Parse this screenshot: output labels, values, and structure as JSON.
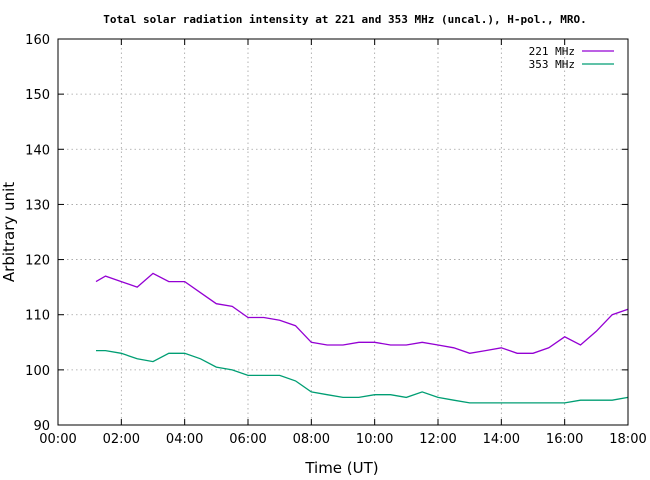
{
  "chart_data": {
    "type": "line",
    "title": "Total solar radiation intensity at 221 and 353 MHz (uncal.), H-pol., MRO.",
    "xlabel": "Time (UT)",
    "ylabel": "Arbitrary unit",
    "xlim": [
      0,
      18
    ],
    "ylim": [
      90,
      160
    ],
    "x_ticks": [
      {
        "value": 0,
        "label": "00:00"
      },
      {
        "value": 2,
        "label": "02:00"
      },
      {
        "value": 4,
        "label": "04:00"
      },
      {
        "value": 6,
        "label": "06:00"
      },
      {
        "value": 8,
        "label": "08:00"
      },
      {
        "value": 10,
        "label": "10:00"
      },
      {
        "value": 12,
        "label": "12:00"
      },
      {
        "value": 14,
        "label": "14:00"
      },
      {
        "value": 16,
        "label": "16:00"
      },
      {
        "value": 18,
        "label": "18:00"
      }
    ],
    "y_ticks": [
      90,
      100,
      110,
      120,
      130,
      140,
      150,
      160
    ],
    "grid": true,
    "legend_position": "top-right",
    "series": [
      {
        "name": "221 MHz",
        "color": "#9400d3",
        "x": [
          1.2,
          1.5,
          2.0,
          2.5,
          3.0,
          3.5,
          4.0,
          4.5,
          5.0,
          5.5,
          6.0,
          6.5,
          7.0,
          7.5,
          8.0,
          8.5,
          9.0,
          9.5,
          10.0,
          10.5,
          11.0,
          11.5,
          12.0,
          12.5,
          13.0,
          13.5,
          14.0,
          14.5,
          15.0,
          15.5,
          16.0,
          16.5,
          17.0,
          17.5,
          18.0
        ],
        "y": [
          116,
          117,
          116,
          115,
          117.5,
          116,
          116,
          114,
          112,
          111.5,
          109.5,
          109.5,
          109,
          108,
          105,
          104.5,
          104.5,
          105,
          105,
          104.5,
          104.5,
          105,
          104.5,
          104,
          103,
          103.5,
          104,
          103,
          103,
          104,
          106,
          104.5,
          107,
          110,
          111
        ]
      },
      {
        "name": "353 MHz",
        "color": "#009e73",
        "x": [
          1.2,
          1.5,
          2.0,
          2.5,
          3.0,
          3.5,
          4.0,
          4.5,
          5.0,
          5.5,
          6.0,
          6.5,
          7.0,
          7.5,
          8.0,
          8.5,
          9.0,
          9.5,
          10.0,
          10.5,
          11.0,
          11.5,
          12.0,
          12.5,
          13.0,
          13.5,
          14.0,
          14.5,
          15.0,
          15.5,
          16.0,
          16.5,
          17.0,
          17.5,
          18.0
        ],
        "y": [
          103.5,
          103.5,
          103,
          102,
          101.5,
          103,
          103,
          102,
          100.5,
          100,
          99,
          99,
          99,
          98,
          96,
          95.5,
          95,
          95,
          95.5,
          95.5,
          95,
          96,
          95,
          94.5,
          94,
          94,
          94,
          94,
          94,
          94,
          94,
          94.5,
          94.5,
          94.5,
          95
        ]
      }
    ]
  }
}
